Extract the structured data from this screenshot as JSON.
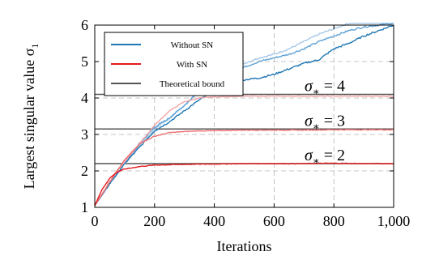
{
  "chart_data": {
    "type": "line",
    "xlabel": "Iterations",
    "ylabel_text": "Largest singular value σ",
    "ylabel_subscript": "1",
    "xlim": [
      0,
      1000
    ],
    "ylim": [
      1,
      6
    ],
    "xticks": [
      0,
      200,
      400,
      600,
      800,
      1000
    ],
    "xtick_labels": [
      "0",
      "200",
      "400",
      "600",
      "800",
      "1,000"
    ],
    "yticks": [
      1,
      2,
      3,
      4,
      5,
      6
    ],
    "ytick_labels": [
      "1",
      "2",
      "3",
      "4",
      "5",
      "6"
    ],
    "grid": true,
    "legend_position": "top-left",
    "legend": [
      {
        "label": "Without SN",
        "color": "#1f77b4"
      },
      {
        "label": "With SN",
        "color": "#e31a1c"
      },
      {
        "label": "Theoretical bound",
        "color": "#555555"
      }
    ],
    "bounds": [
      {
        "value": 2.2,
        "annotation": "σ",
        "sub": "∗",
        "rhs": "= 2"
      },
      {
        "value": 3.15,
        "annotation": "σ",
        "sub": "∗",
        "rhs": "= 3"
      },
      {
        "value": 4.1,
        "annotation": "σ",
        "sub": "∗",
        "rhs": "= 4"
      }
    ],
    "series": [
      {
        "group": "Without SN",
        "variant": 0,
        "color": "#1f77b4",
        "x": [
          0,
          50,
          100,
          150,
          200,
          250,
          300,
          350,
          400,
          450,
          500,
          550,
          600,
          650,
          700,
          750,
          800,
          850,
          900,
          950,
          1000
        ],
        "y": [
          1.05,
          1.65,
          2.2,
          2.65,
          3.1,
          3.35,
          3.65,
          3.95,
          4.2,
          4.3,
          4.5,
          4.55,
          4.65,
          4.8,
          4.95,
          5.05,
          5.35,
          5.5,
          5.7,
          5.85,
          6.0
        ]
      },
      {
        "group": "Without SN",
        "variant": 1,
        "color": "#5fa2d6",
        "x": [
          0,
          50,
          100,
          150,
          200,
          250,
          300,
          350,
          400,
          450,
          500,
          550,
          600,
          650,
          700,
          750,
          800,
          850,
          900,
          950,
          1000
        ],
        "y": [
          1.05,
          1.65,
          2.2,
          2.75,
          3.2,
          3.45,
          3.8,
          4.2,
          4.4,
          4.6,
          4.85,
          5.0,
          5.1,
          5.2,
          5.35,
          5.55,
          5.7,
          5.85,
          5.95,
          6.0,
          6.05
        ]
      },
      {
        "group": "Without SN",
        "variant": 2,
        "color": "#a6c9e8",
        "x": [
          0,
          50,
          100,
          150,
          200,
          250,
          300,
          350,
          400,
          450,
          500,
          550,
          600,
          650,
          700,
          750,
          800,
          850,
          900,
          950,
          1000
        ],
        "y": [
          1.05,
          1.65,
          2.2,
          2.7,
          3.15,
          3.45,
          3.8,
          4.15,
          4.4,
          4.65,
          4.95,
          5.1,
          5.2,
          5.35,
          5.55,
          5.75,
          5.9,
          6.05,
          6.1,
          6.1,
          6.1
        ]
      },
      {
        "group": "With SN",
        "variant": 0,
        "color": "#e31a1c",
        "x": [
          0,
          25,
          50,
          75,
          100,
          150,
          200,
          300,
          400,
          500,
          600,
          700,
          800,
          900,
          1000
        ],
        "y": [
          1.05,
          1.5,
          1.8,
          1.97,
          2.05,
          2.12,
          2.16,
          2.18,
          2.19,
          2.2,
          2.2,
          2.2,
          2.21,
          2.2,
          2.2
        ]
      },
      {
        "group": "With SN",
        "variant": 1,
        "color": "#ee6e70",
        "x": [
          0,
          50,
          100,
          150,
          200,
          250,
          300,
          350,
          400,
          500,
          600,
          700,
          800,
          900,
          1000
        ],
        "y": [
          1.05,
          1.7,
          2.3,
          2.75,
          2.95,
          3.05,
          3.08,
          3.1,
          3.1,
          3.12,
          3.12,
          3.12,
          3.13,
          3.13,
          3.13
        ]
      },
      {
        "group": "With SN",
        "variant": 2,
        "color": "#f4a3a4",
        "x": [
          0,
          50,
          100,
          150,
          200,
          250,
          300,
          350,
          400,
          450,
          500,
          600,
          700,
          800,
          900,
          1000
        ],
        "y": [
          1.05,
          1.7,
          2.25,
          2.75,
          3.25,
          3.65,
          3.9,
          4.0,
          4.03,
          4.04,
          4.05,
          4.05,
          4.05,
          4.05,
          4.05,
          4.05
        ]
      }
    ]
  }
}
